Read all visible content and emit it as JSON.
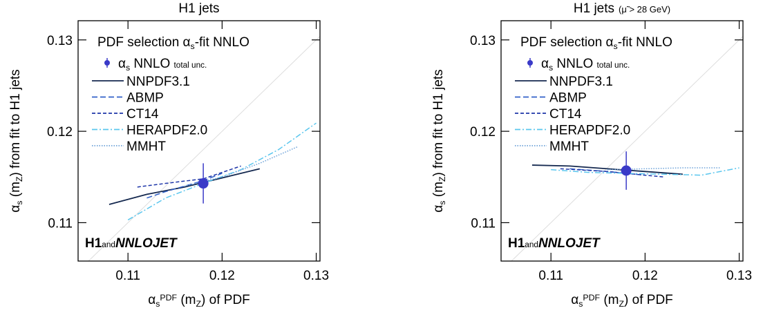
{
  "chart_data": [
    {
      "type": "line",
      "title": "H1 jets",
      "legend_title": [
        "PDF selection α",
        "s",
        "-fit NNLO"
      ],
      "x_label": [
        "α",
        "s",
        "PDF",
        " (m",
        "Z",
        ") of PDF"
      ],
      "y_label": [
        "α",
        "s",
        " (m",
        "Z",
        ") from fit to H1 jets"
      ],
      "logo": [
        "H1",
        "and",
        "NNLOJET"
      ],
      "xlim": [
        0.1047,
        0.1304
      ],
      "ylim": [
        0.1058,
        0.1321
      ],
      "xticks": [
        0.11,
        0.12,
        0.13
      ],
      "yticks": [
        0.11,
        0.12,
        0.13
      ],
      "measurement": {
        "name": [
          "α",
          "s",
          " NNLO ",
          "total unc."
        ],
        "x": 0.118,
        "y": 0.1143,
        "error": 0.0022,
        "color": "#3a3ac8"
      },
      "series": [
        {
          "name": "NNPDF3.1",
          "color": "#14284f",
          "linestyle": "solid",
          "x": [
            0.108,
            0.112,
            0.116,
            0.12,
            0.124
          ],
          "values": [
            0.112,
            0.1131,
            0.1139,
            0.1149,
            0.1159
          ]
        },
        {
          "name": "ABMP",
          "color": "#3060c8",
          "linestyle": "dashed",
          "x": [
            0.112,
            0.114,
            0.116,
            0.118,
            0.12
          ],
          "values": [
            0.1127,
            0.1134,
            0.114,
            0.1146,
            0.1154
          ]
        },
        {
          "name": "CT14",
          "color": "#1c34a8",
          "linestyle": "shortdash",
          "x": [
            0.111,
            0.114,
            0.118,
            0.122
          ],
          "values": [
            0.1139,
            0.1143,
            0.1148,
            0.1162
          ]
        },
        {
          "name": "HERAPDF2.0",
          "color": "#5ac6ee",
          "linestyle": "dashdot",
          "x": [
            0.11,
            0.114,
            0.118,
            0.122,
            0.126,
            0.13
          ],
          "values": [
            0.1103,
            0.1127,
            0.1143,
            0.1158,
            0.118,
            0.1209
          ]
        },
        {
          "name": "MMHT",
          "color": "#6aa0d8",
          "linestyle": "dotted",
          "x": [
            0.116,
            0.12,
            0.124,
            0.128
          ],
          "values": [
            0.114,
            0.115,
            0.1165,
            0.1183
          ]
        }
      ]
    },
    {
      "type": "line",
      "title": "H1 jets",
      "title_note": "(μ̃ > 28 GeV)",
      "legend_title": [
        "PDF selection α",
        "s",
        "-fit NNLO"
      ],
      "x_label": [
        "α",
        "s",
        "PDF",
        " (m",
        "Z",
        ") of PDF"
      ],
      "y_label": [
        "α",
        "s",
        " (m",
        "Z",
        ") from fit to H1 jets"
      ],
      "logo": [
        "H1",
        "and",
        "NNLOJET"
      ],
      "xlim": [
        0.1047,
        0.1304
      ],
      "ylim": [
        0.1058,
        0.1321
      ],
      "xticks": [
        0.11,
        0.12,
        0.13
      ],
      "yticks": [
        0.11,
        0.12,
        0.13
      ],
      "measurement": {
        "name": [
          "α",
          "s",
          " NNLO ",
          "total unc."
        ],
        "x": 0.118,
        "y": 0.1157,
        "error": 0.0021,
        "color": "#3a3ac8"
      },
      "series": [
        {
          "name": "NNPDF3.1",
          "color": "#14284f",
          "linestyle": "solid",
          "x": [
            0.108,
            0.112,
            0.116,
            0.12,
            0.124
          ],
          "values": [
            0.1163,
            0.1162,
            0.1159,
            0.1156,
            0.1153
          ]
        },
        {
          "name": "ABMP",
          "color": "#3060c8",
          "linestyle": "dashed",
          "x": [
            0.112,
            0.116,
            0.12
          ],
          "values": [
            0.1159,
            0.1156,
            0.1152
          ]
        },
        {
          "name": "CT14",
          "color": "#1c34a8",
          "linestyle": "shortdash",
          "x": [
            0.111,
            0.116,
            0.122
          ],
          "values": [
            0.1159,
            0.1156,
            0.115
          ]
        },
        {
          "name": "HERAPDF2.0",
          "color": "#5ac6ee",
          "linestyle": "dashdot",
          "x": [
            0.11,
            0.114,
            0.118,
            0.122,
            0.126,
            0.13
          ],
          "values": [
            0.1158,
            0.1155,
            0.1154,
            0.1153,
            0.1152,
            0.116
          ]
        },
        {
          "name": "MMHT",
          "color": "#6aa0d8",
          "linestyle": "dotted",
          "x": [
            0.116,
            0.12,
            0.124,
            0.128
          ],
          "values": [
            0.1158,
            0.1159,
            0.116,
            0.116
          ]
        }
      ]
    }
  ]
}
